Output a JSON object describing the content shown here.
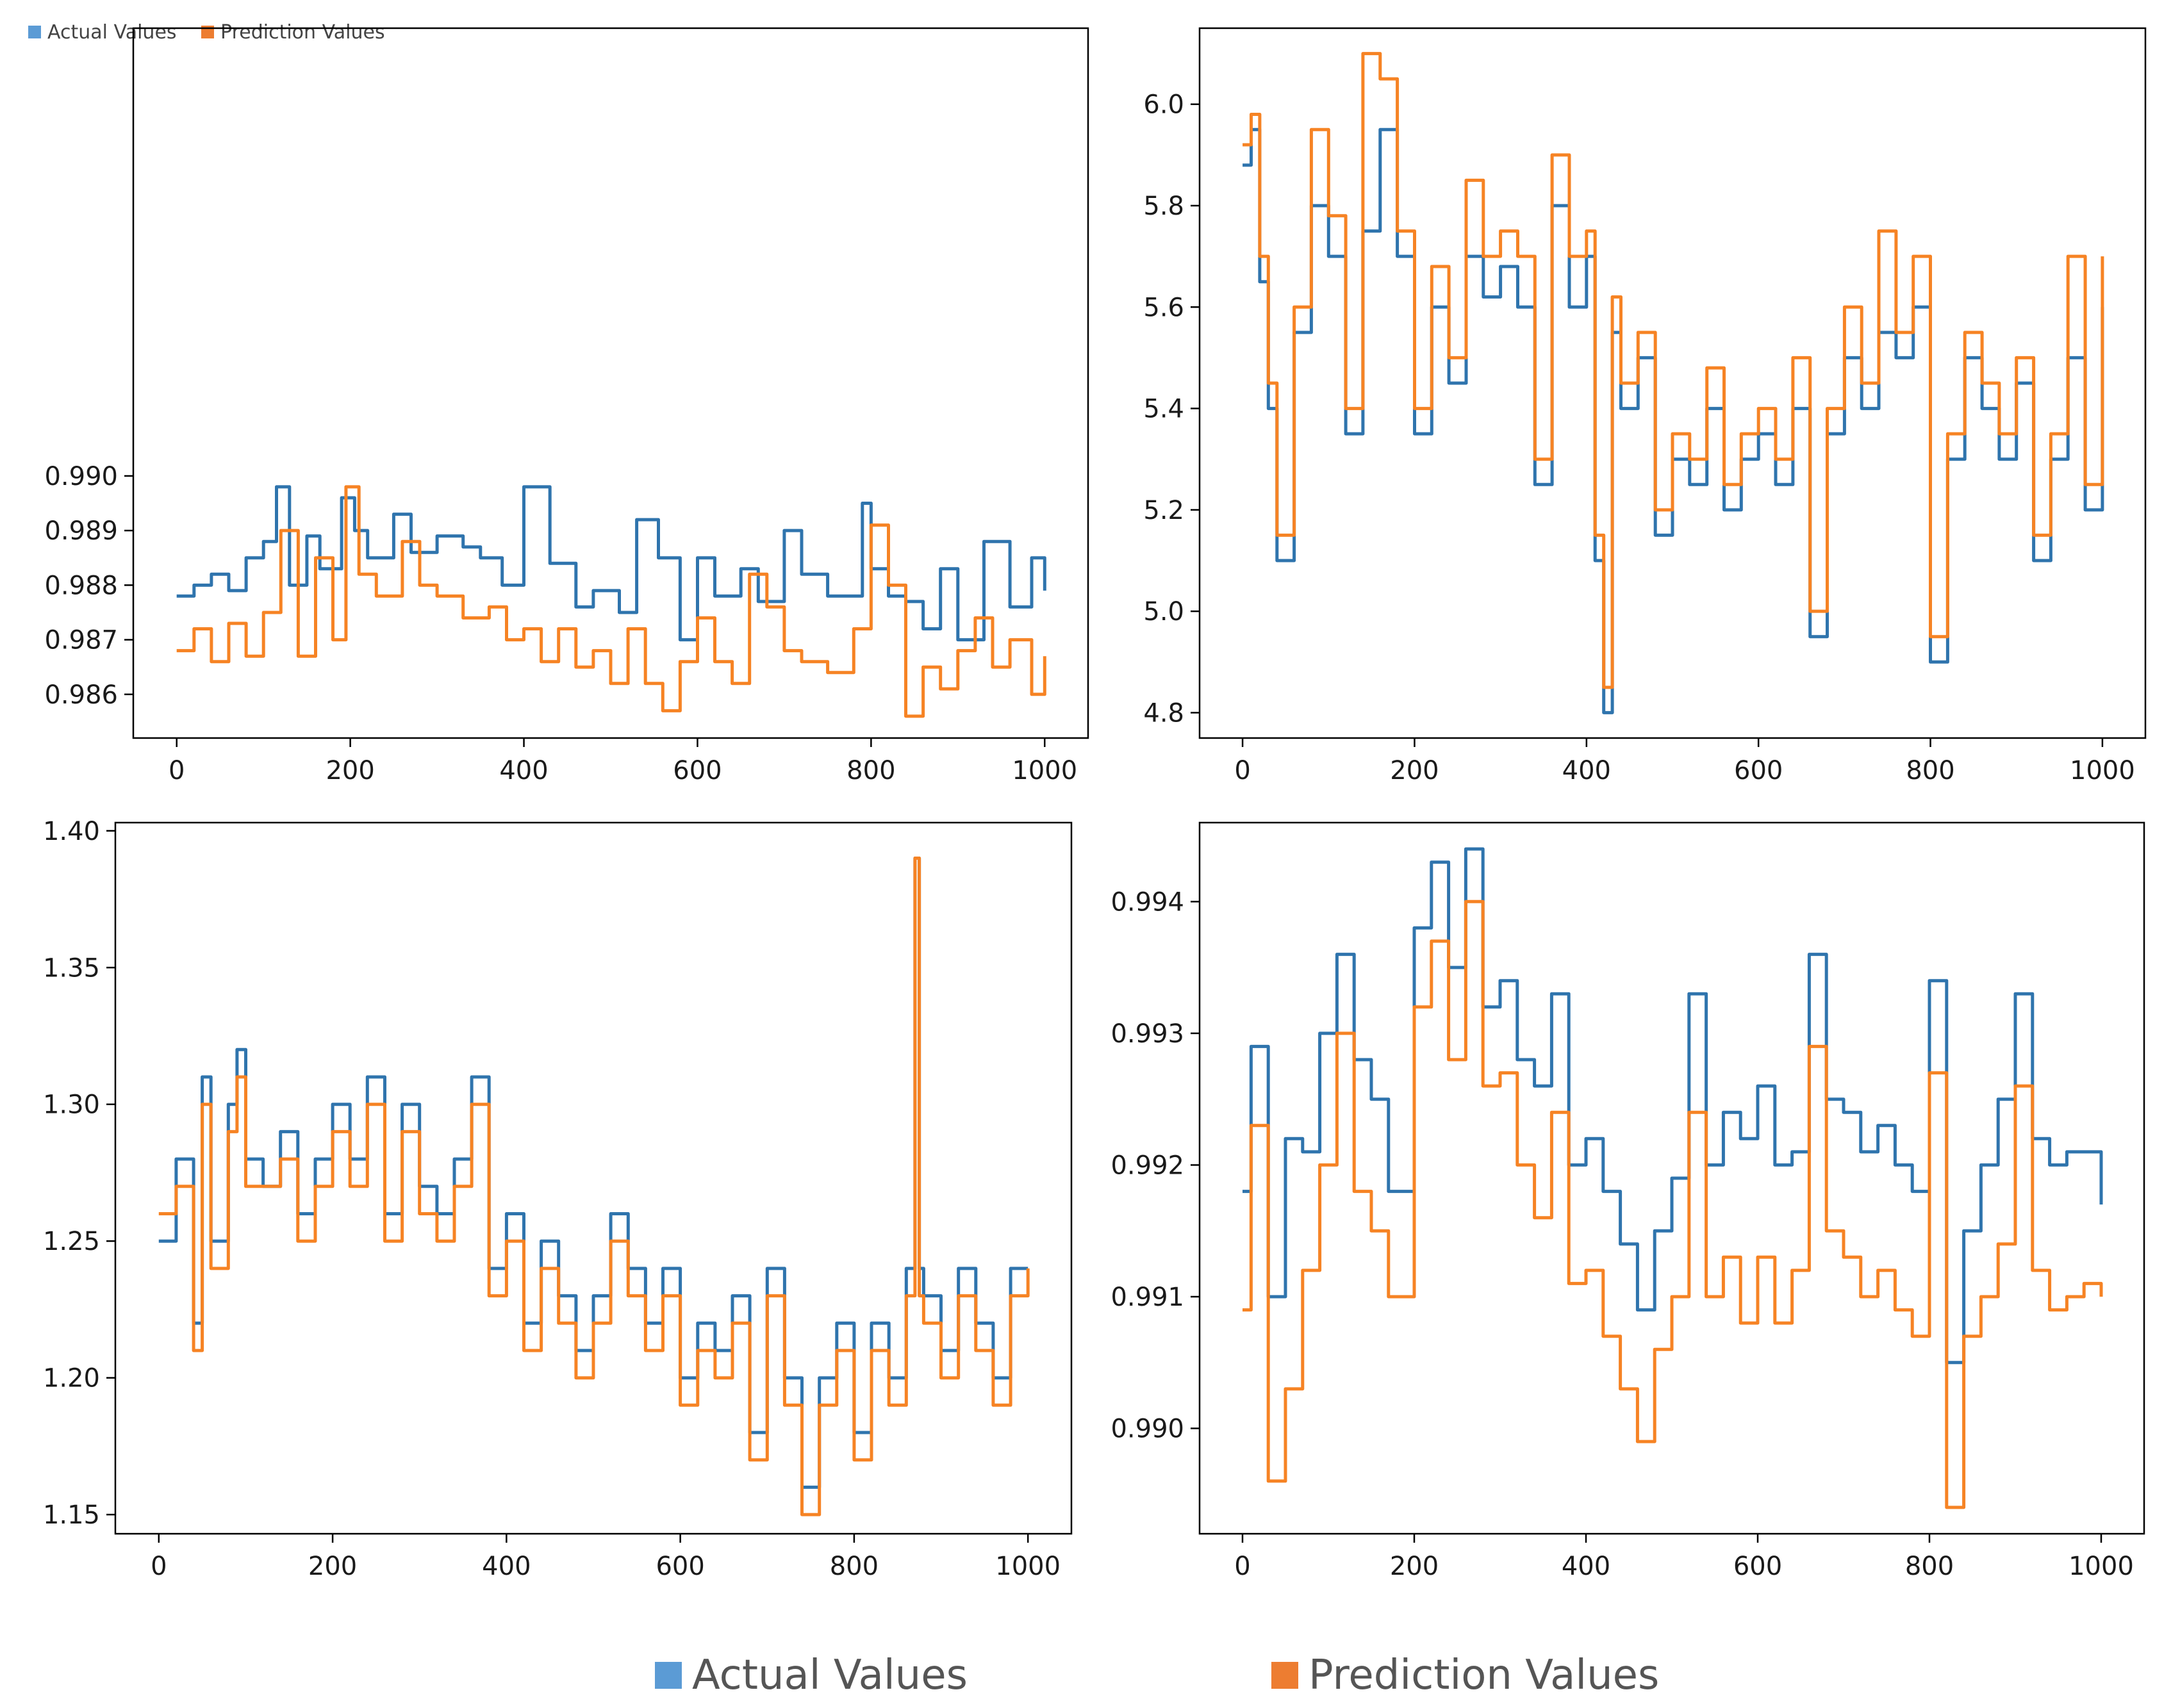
{
  "colors": {
    "actual": "#2f74ad",
    "prediction": "#f68324",
    "legend_actual": "#5b9bd5",
    "legend_prediction": "#ed7d31"
  },
  "legend_small": {
    "actual_label": "Actual Values",
    "prediction_label": "Prediction Values"
  },
  "legend_main": {
    "actual_label": "Actual Values",
    "prediction_label": "Prediction Values"
  },
  "chart_data": [
    {
      "type": "line",
      "position": "top-left",
      "title": "",
      "xlabel": "",
      "ylabel": "",
      "xlim": [
        -50,
        1050
      ],
      "ylim": [
        0.9852,
        0.9982
      ],
      "xticks": [
        0,
        200,
        400,
        600,
        800,
        1000
      ],
      "yticks": [
        0.986,
        0.987,
        0.988,
        0.989,
        0.99
      ],
      "ytick_labels": [
        "0.986",
        "0.987",
        "0.988",
        "0.989",
        "0.990"
      ],
      "grid": false,
      "series": [
        {
          "name": "Actual Values",
          "x": [
            0,
            20,
            40,
            60,
            80,
            100,
            115,
            130,
            150,
            165,
            190,
            205,
            220,
            250,
            270,
            300,
            330,
            350,
            375,
            400,
            430,
            460,
            480,
            510,
            530,
            555,
            580,
            600,
            620,
            650,
            670,
            700,
            720,
            750,
            790,
            800,
            820,
            840,
            860,
            880,
            900,
            930,
            960,
            985,
            1000
          ],
          "values": [
            0.9878,
            0.988,
            0.9882,
            0.9879,
            0.9885,
            0.9888,
            0.9898,
            0.988,
            0.9889,
            0.9883,
            0.9896,
            0.989,
            0.9885,
            0.9893,
            0.9886,
            0.9889,
            0.9887,
            0.9885,
            0.988,
            0.9898,
            0.9884,
            0.9876,
            0.9879,
            0.9875,
            0.9892,
            0.9885,
            0.987,
            0.9885,
            0.9878,
            0.9883,
            0.9877,
            0.989,
            0.9882,
            0.9878,
            0.9895,
            0.9883,
            0.9878,
            0.9877,
            0.9872,
            0.9883,
            0.987,
            0.9888,
            0.9876,
            0.9885,
            0.9879
          ]
        },
        {
          "name": "Prediction Values",
          "x": [
            0,
            20,
            40,
            60,
            80,
            100,
            120,
            140,
            160,
            180,
            195,
            210,
            230,
            260,
            280,
            300,
            330,
            360,
            380,
            400,
            420,
            440,
            460,
            480,
            500,
            520,
            540,
            560,
            580,
            600,
            620,
            640,
            660,
            680,
            700,
            720,
            750,
            780,
            800,
            820,
            840,
            860,
            880,
            900,
            920,
            940,
            960,
            985,
            1000
          ],
          "values": [
            0.9868,
            0.9872,
            0.9866,
            0.9873,
            0.9867,
            0.9875,
            0.989,
            0.9867,
            0.9885,
            0.987,
            0.9898,
            0.9882,
            0.9878,
            0.9888,
            0.988,
            0.9878,
            0.9874,
            0.9876,
            0.987,
            0.9872,
            0.9866,
            0.9872,
            0.9865,
            0.9868,
            0.9862,
            0.9872,
            0.9862,
            0.9857,
            0.9866,
            0.9874,
            0.9866,
            0.9862,
            0.9882,
            0.9876,
            0.9868,
            0.9866,
            0.9864,
            0.9872,
            0.9891,
            0.988,
            0.9856,
            0.9865,
            0.9861,
            0.9868,
            0.9874,
            0.9865,
            0.987,
            0.986,
            0.9867
          ]
        }
      ]
    },
    {
      "type": "line",
      "position": "top-right",
      "title": "",
      "xlabel": "",
      "ylabel": "",
      "xlim": [
        -50,
        1050
      ],
      "ylim": [
        4.75,
        6.15
      ],
      "xticks": [
        0,
        200,
        400,
        600,
        800,
        1000
      ],
      "yticks": [
        4.8,
        5.0,
        5.2,
        5.4,
        5.6,
        5.8,
        6.0
      ],
      "ytick_labels": [
        "4.8",
        "5.0",
        "5.2",
        "5.4",
        "5.6",
        "5.8",
        "6.0"
      ],
      "grid": false,
      "series": [
        {
          "name": "Actual Values",
          "x": [
            0,
            10,
            20,
            30,
            40,
            60,
            80,
            100,
            120,
            140,
            160,
            180,
            200,
            220,
            240,
            260,
            280,
            300,
            320,
            340,
            360,
            380,
            400,
            410,
            420,
            430,
            440,
            460,
            480,
            500,
            520,
            540,
            560,
            580,
            600,
            620,
            640,
            660,
            680,
            700,
            720,
            740,
            760,
            780,
            800,
            820,
            840,
            860,
            880,
            900,
            920,
            940,
            960,
            980,
            1000
          ],
          "values": [
            5.88,
            5.95,
            5.65,
            5.4,
            5.1,
            5.55,
            5.8,
            5.7,
            5.35,
            5.75,
            5.95,
            5.7,
            5.35,
            5.6,
            5.45,
            5.7,
            5.62,
            5.68,
            5.6,
            5.25,
            5.8,
            5.6,
            5.7,
            5.1,
            4.8,
            5.55,
            5.4,
            5.5,
            5.15,
            5.3,
            5.25,
            5.4,
            5.2,
            5.3,
            5.35,
            5.25,
            5.4,
            4.95,
            5.35,
            5.5,
            5.4,
            5.55,
            5.5,
            5.6,
            4.9,
            5.3,
            5.5,
            5.4,
            5.3,
            5.45,
            5.1,
            5.3,
            5.5,
            5.2,
            5.6
          ]
        },
        {
          "name": "Prediction Values",
          "x": [
            0,
            10,
            20,
            30,
            40,
            60,
            80,
            100,
            120,
            140,
            160,
            180,
            200,
            220,
            240,
            260,
            280,
            300,
            320,
            340,
            360,
            380,
            400,
            410,
            420,
            430,
            440,
            460,
            480,
            500,
            520,
            540,
            560,
            580,
            600,
            620,
            640,
            660,
            680,
            700,
            720,
            740,
            760,
            780,
            800,
            820,
            840,
            860,
            880,
            900,
            920,
            940,
            960,
            980,
            1000
          ],
          "values": [
            5.92,
            5.98,
            5.7,
            5.45,
            5.15,
            5.6,
            5.95,
            5.78,
            5.4,
            6.1,
            6.05,
            5.75,
            5.4,
            5.68,
            5.5,
            5.85,
            5.7,
            5.75,
            5.7,
            5.3,
            5.9,
            5.7,
            5.75,
            5.15,
            4.85,
            5.62,
            5.45,
            5.55,
            5.2,
            5.35,
            5.3,
            5.48,
            5.25,
            5.35,
            5.4,
            5.3,
            5.5,
            5.0,
            5.4,
            5.6,
            5.45,
            5.75,
            5.55,
            5.7,
            4.95,
            5.35,
            5.55,
            5.45,
            5.35,
            5.5,
            5.15,
            5.35,
            5.7,
            5.25,
            5.7
          ]
        }
      ]
    },
    {
      "type": "line",
      "position": "bottom-left",
      "title": "",
      "xlabel": "",
      "ylabel": "",
      "xlim": [
        -50,
        1050
      ],
      "ylim": [
        1.143,
        1.403
      ],
      "xticks": [
        0,
        200,
        400,
        600,
        800,
        1000
      ],
      "yticks": [
        1.15,
        1.2,
        1.25,
        1.3,
        1.35,
        1.4
      ],
      "ytick_labels": [
        "1.15",
        "1.20",
        "1.25",
        "1.30",
        "1.35",
        "1.40"
      ],
      "grid": false,
      "series": [
        {
          "name": "Actual Values",
          "x": [
            0,
            20,
            40,
            50,
            60,
            80,
            90,
            100,
            120,
            140,
            160,
            180,
            200,
            220,
            240,
            260,
            280,
            300,
            320,
            340,
            360,
            380,
            400,
            420,
            440,
            460,
            480,
            500,
            520,
            540,
            560,
            580,
            600,
            620,
            640,
            660,
            680,
            700,
            720,
            740,
            760,
            780,
            800,
            820,
            840,
            860,
            870,
            875,
            880,
            900,
            920,
            940,
            960,
            980,
            1000
          ],
          "values": [
            1.25,
            1.28,
            1.22,
            1.31,
            1.25,
            1.3,
            1.32,
            1.28,
            1.27,
            1.29,
            1.26,
            1.28,
            1.3,
            1.28,
            1.31,
            1.26,
            1.3,
            1.27,
            1.26,
            1.28,
            1.31,
            1.24,
            1.26,
            1.22,
            1.25,
            1.23,
            1.21,
            1.23,
            1.26,
            1.24,
            1.22,
            1.24,
            1.2,
            1.22,
            1.21,
            1.23,
            1.18,
            1.24,
            1.2,
            1.16,
            1.2,
            1.22,
            1.18,
            1.22,
            1.2,
            1.24,
            1.39,
            1.24,
            1.23,
            1.21,
            1.24,
            1.22,
            1.2,
            1.24,
            1.24
          ]
        },
        {
          "name": "Prediction Values",
          "x": [
            0,
            20,
            40,
            50,
            60,
            80,
            90,
            100,
            120,
            140,
            160,
            180,
            200,
            220,
            240,
            260,
            280,
            300,
            320,
            340,
            360,
            380,
            400,
            420,
            440,
            460,
            480,
            500,
            520,
            540,
            560,
            580,
            600,
            620,
            640,
            660,
            680,
            700,
            720,
            740,
            760,
            780,
            800,
            820,
            840,
            860,
            870,
            875,
            880,
            900,
            920,
            940,
            960,
            980,
            1000
          ],
          "values": [
            1.26,
            1.27,
            1.21,
            1.3,
            1.24,
            1.29,
            1.31,
            1.27,
            1.27,
            1.28,
            1.25,
            1.27,
            1.29,
            1.27,
            1.3,
            1.25,
            1.29,
            1.26,
            1.25,
            1.27,
            1.3,
            1.23,
            1.25,
            1.21,
            1.24,
            1.22,
            1.2,
            1.22,
            1.25,
            1.23,
            1.21,
            1.23,
            1.19,
            1.21,
            1.2,
            1.22,
            1.17,
            1.23,
            1.19,
            1.15,
            1.19,
            1.21,
            1.17,
            1.21,
            1.19,
            1.23,
            1.39,
            1.23,
            1.22,
            1.2,
            1.23,
            1.21,
            1.19,
            1.23,
            1.24
          ]
        }
      ]
    },
    {
      "type": "line",
      "position": "bottom-right",
      "title": "",
      "xlabel": "",
      "ylabel": "",
      "xlim": [
        -50,
        1050
      ],
      "ylim": [
        0.9892,
        0.9946
      ],
      "xticks": [
        0,
        200,
        400,
        600,
        800,
        1000
      ],
      "yticks": [
        0.99,
        0.991,
        0.992,
        0.993,
        0.994
      ],
      "ytick_labels": [
        "0.990",
        "0.991",
        "0.992",
        "0.993",
        "0.994"
      ],
      "grid": false,
      "series": [
        {
          "name": "Actual Values",
          "x": [
            0,
            10,
            30,
            50,
            70,
            90,
            110,
            130,
            150,
            170,
            200,
            220,
            240,
            260,
            280,
            300,
            320,
            340,
            360,
            380,
            400,
            420,
            440,
            460,
            480,
            500,
            520,
            540,
            560,
            580,
            600,
            620,
            640,
            660,
            680,
            700,
            720,
            740,
            760,
            780,
            800,
            820,
            840,
            860,
            880,
            900,
            920,
            940,
            960,
            980,
            1000
          ],
          "values": [
            0.9918,
            0.9929,
            0.991,
            0.9922,
            0.9921,
            0.993,
            0.9936,
            0.9928,
            0.9925,
            0.9918,
            0.9938,
            0.9943,
            0.9935,
            0.9944,
            0.9932,
            0.9934,
            0.9928,
            0.9926,
            0.9933,
            0.992,
            0.9922,
            0.9918,
            0.9914,
            0.9909,
            0.9915,
            0.9919,
            0.9933,
            0.992,
            0.9924,
            0.9922,
            0.9926,
            0.992,
            0.9921,
            0.9936,
            0.9925,
            0.9924,
            0.9921,
            0.9923,
            0.992,
            0.9918,
            0.9934,
            0.9905,
            0.9915,
            0.992,
            0.9925,
            0.9933,
            0.9922,
            0.992,
            0.9921,
            0.9921,
            0.9917
          ]
        },
        {
          "name": "Prediction Values",
          "x": [
            0,
            10,
            30,
            50,
            70,
            90,
            110,
            130,
            150,
            170,
            200,
            220,
            240,
            260,
            280,
            300,
            320,
            340,
            360,
            380,
            400,
            420,
            440,
            460,
            480,
            500,
            520,
            540,
            560,
            580,
            600,
            620,
            640,
            660,
            680,
            700,
            720,
            740,
            760,
            780,
            800,
            820,
            840,
            860,
            880,
            900,
            920,
            940,
            960,
            980,
            1000
          ],
          "values": [
            0.9909,
            0.9923,
            0.9896,
            0.9903,
            0.9912,
            0.992,
            0.993,
            0.9918,
            0.9915,
            0.991,
            0.9932,
            0.9937,
            0.9928,
            0.994,
            0.9926,
            0.9927,
            0.992,
            0.9916,
            0.9924,
            0.9911,
            0.9912,
            0.9907,
            0.9903,
            0.9899,
            0.9906,
            0.991,
            0.9924,
            0.991,
            0.9913,
            0.9908,
            0.9913,
            0.9908,
            0.9912,
            0.9929,
            0.9915,
            0.9913,
            0.991,
            0.9912,
            0.9909,
            0.9907,
            0.9927,
            0.9894,
            0.9907,
            0.991,
            0.9914,
            0.9926,
            0.9912,
            0.9909,
            0.991,
            0.9911,
            0.991
          ]
        }
      ]
    }
  ]
}
